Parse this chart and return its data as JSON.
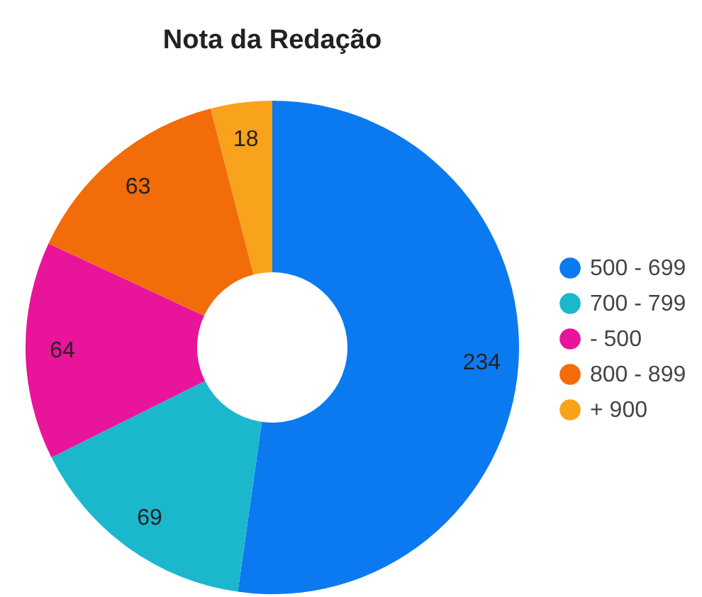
{
  "chart_data": {
    "type": "donut",
    "title": "Nota da Redação",
    "categories": [
      "500 - 699",
      "700 - 799",
      "- 500",
      "800 - 899",
      "+ 900"
    ],
    "values": [
      234,
      69,
      64,
      63,
      18
    ],
    "colors": [
      "#0b7af0",
      "#1bb8cd",
      "#e8149a",
      "#f26c0a",
      "#f9a21b"
    ],
    "data_labels": true,
    "legend": "right"
  }
}
